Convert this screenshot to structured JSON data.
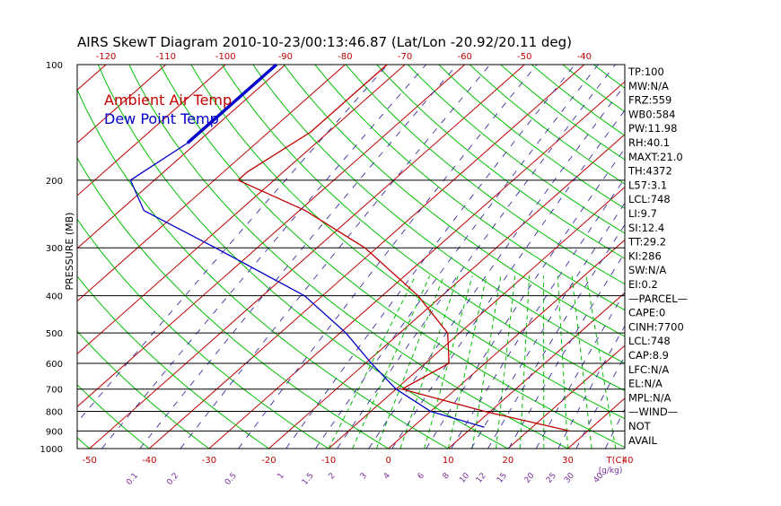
{
  "chart_data": {
    "type": "line",
    "title": "AIRS SkewT Diagram 2010-10-23/00:13:46.87 (Lat/Lon -20.92/20.11 deg)",
    "ylabel": "PRESSURE (MB)",
    "ylim": [
      100,
      1000
    ],
    "yscale": "log",
    "top_temperature_ticks": [
      -120,
      -110,
      -100,
      -90,
      -80,
      -70,
      -60,
      -50,
      -40
    ],
    "bottom_temperature_ticks": [
      -50,
      -40,
      -30,
      -20,
      -10,
      0,
      10,
      20,
      30,
      40
    ],
    "bottom_temperature_unit": "T(C)",
    "mixing_ratio_ticks": [
      "0.1",
      "0.2",
      "0.5",
      "1",
      "1.5",
      "2",
      "3",
      "4",
      "6",
      "8",
      "10",
      "12",
      "15",
      "20",
      "25",
      "30",
      "40"
    ],
    "mixing_ratio_unit": "(g/kg)",
    "pressure_ticks": [
      100,
      200,
      300,
      400,
      500,
      600,
      700,
      800,
      900,
      1000
    ],
    "series": [
      {
        "name": "Ambient Air Temp",
        "color": "#c00000",
        "pressure": [
          100,
          150,
          190,
          200,
          240,
          300,
          400,
          500,
          600,
          700,
          800,
          900
        ],
        "temperature": [
          -73,
          -73,
          -76,
          -76,
          -59,
          -42,
          -24,
          -12,
          -6,
          -9,
          9,
          27
        ]
      },
      {
        "name": "Dew Point Temp",
        "color": "#0000c8",
        "pressure": [
          100,
          160,
          200,
          240,
          300,
          400,
          500,
          600,
          700,
          800,
          880
        ],
        "temperature": [
          -91.5,
          -91.5,
          -94,
          -86,
          -67,
          -43,
          -29,
          -19,
          -10,
          0,
          12
        ]
      }
    ],
    "legend_position": "top-left",
    "stats": [
      "TP:100",
      "MW:N/A",
      "FRZ:559",
      "WB0:584",
      "PW:11.98",
      "RH:40.1",
      "MAXT:21.0",
      "TH:4372",
      "L57:3.1",
      "LCL:748",
      "LI:9.7",
      "SI:12.4",
      "TT:29.2",
      "KI:286",
      "SW:N/A",
      "EI:0.2",
      "—PARCEL—",
      "CAPE:0",
      "CINH:7700",
      "LCL:748",
      "CAP:8.9",
      "LFC:N/A",
      "EL:N/A",
      "MPL:N/A",
      "—WIND—",
      "NOT",
      "AVAIL"
    ],
    "colors": {
      "isotherm": "#c00000",
      "dry_adiabat": "#00c000",
      "mixing_ratio": "#3a2fa0",
      "moist_adiabat": "#00c000",
      "isobar": "#000000"
    }
  }
}
